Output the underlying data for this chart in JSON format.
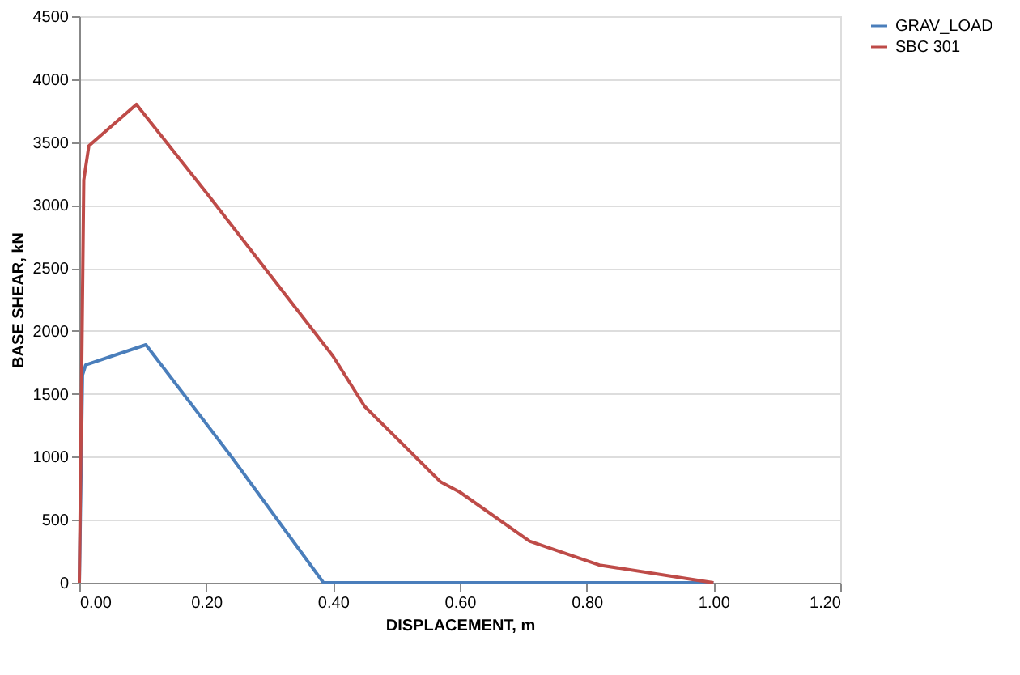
{
  "chart_data": {
    "type": "line",
    "xlabel": "DISPLACEMENT, m",
    "ylabel": "BASE SHEAR, kN",
    "xlim": [
      0,
      1.2
    ],
    "xticks": [
      {
        "value": 0,
        "label": "0.00"
      },
      {
        "value": 0.2,
        "label": "0.20"
      },
      {
        "value": 0.4,
        "label": "0.40"
      },
      {
        "value": 0.6,
        "label": "0.60"
      },
      {
        "value": 0.8,
        "label": "0.80"
      },
      {
        "value": 1.0,
        "label": "1.00"
      },
      {
        "value": 1.2,
        "label": "1.20"
      }
    ],
    "ylim": [
      0,
      4500
    ],
    "yticks": [
      0,
      500,
      1000,
      1500,
      2000,
      2500,
      3000,
      3500,
      4000,
      4500
    ],
    "grid": "y",
    "legend": "right",
    "marker": "none",
    "line_style": "solid",
    "series": [
      {
        "name": "GRAV_LOAD",
        "color": "#4a7ebb",
        "x": [
          0,
          0.005,
          0.01,
          0.105,
          0.24,
          0.385,
          1.0
        ],
        "values": [
          0,
          1650,
          1730,
          1890,
          1000,
          0,
          0
        ]
      },
      {
        "name": "SBC 301",
        "color": "#be4b48",
        "x": [
          0,
          0.007,
          0.015,
          0.09,
          0.2,
          0.4,
          0.45,
          0.57,
          0.6,
          0.71,
          0.82,
          1.0
        ],
        "values": [
          0,
          3200,
          3470,
          3800,
          3100,
          1800,
          1400,
          800,
          720,
          330,
          140,
          0
        ]
      }
    ]
  }
}
